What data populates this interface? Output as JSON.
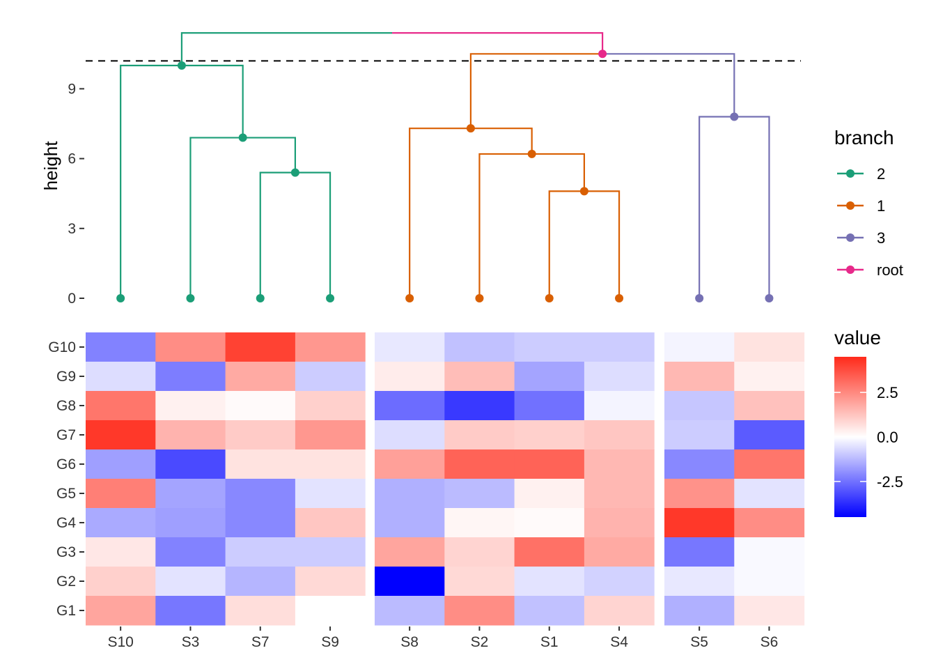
{
  "chart_data": [
    {
      "type": "dendrogram",
      "ylabel": "height",
      "yticks": [
        0,
        3,
        6,
        9
      ],
      "ylim": [
        0,
        12
      ],
      "cut_height": 10.2,
      "leaves": [
        {
          "label": "S10",
          "branch": "2"
        },
        {
          "label": "S3",
          "branch": "2"
        },
        {
          "label": "S7",
          "branch": "2"
        },
        {
          "label": "S9",
          "branch": "2"
        },
        {
          "label": "S8",
          "branch": "1"
        },
        {
          "label": "S2",
          "branch": "1"
        },
        {
          "label": "S1",
          "branch": "1"
        },
        {
          "label": "S4",
          "branch": "1"
        },
        {
          "label": "S5",
          "branch": "3"
        },
        {
          "label": "S6",
          "branch": "3"
        }
      ],
      "merges": [
        {
          "id": "m1",
          "children": [
            "S7",
            "S9"
          ],
          "height": 5.4,
          "branch": "2"
        },
        {
          "id": "m2",
          "children": [
            "S3",
            "m1"
          ],
          "height": 6.9,
          "branch": "2"
        },
        {
          "id": "m3",
          "children": [
            "S10",
            "m2"
          ],
          "height": 10.0,
          "branch": "2"
        },
        {
          "id": "m4",
          "children": [
            "S1",
            "S4"
          ],
          "height": 4.6,
          "branch": "1"
        },
        {
          "id": "m5",
          "children": [
            "S2",
            "m4"
          ],
          "height": 6.2,
          "branch": "1"
        },
        {
          "id": "m6",
          "children": [
            "S8",
            "m5"
          ],
          "height": 7.3,
          "branch": "1"
        },
        {
          "id": "m7",
          "children": [
            "S5",
            "S6"
          ],
          "height": 7.8,
          "branch": "3"
        },
        {
          "id": "m8",
          "children": [
            "m6",
            "m7"
          ],
          "height": 10.5,
          "branch": "root",
          "child_branches": [
            "1",
            "3"
          ]
        },
        {
          "id": "m9",
          "children": [
            "m3",
            "m8"
          ],
          "height": 11.4,
          "branch": "root",
          "child_branches": [
            "2",
            "root"
          ]
        }
      ],
      "legend": {
        "title": "branch",
        "placement": "right",
        "entries": [
          {
            "label": "2",
            "color": "#1b9e77"
          },
          {
            "label": "1",
            "color": "#d95f02"
          },
          {
            "label": "3",
            "color": "#7570b3"
          },
          {
            "label": "root",
            "color": "#e7298a"
          }
        ]
      }
    },
    {
      "type": "heatmap",
      "rows": [
        "G10",
        "G9",
        "G8",
        "G7",
        "G6",
        "G5",
        "G4",
        "G3",
        "G2",
        "G1"
      ],
      "column_groups": [
        [
          "S10",
          "S3",
          "S7",
          "S9"
        ],
        [
          "S8",
          "S2",
          "S1",
          "S4"
        ],
        [
          "S5",
          "S6"
        ]
      ],
      "values": {
        "S10": [
          -2.2,
          -0.6,
          2.9,
          4.2,
          -1.7,
          2.7,
          -1.5,
          0.5,
          1.0,
          1.9
        ],
        "S3": [
          2.4,
          -2.3,
          0.3,
          1.6,
          -3.2,
          -1.6,
          -1.7,
          -2.2,
          -0.5,
          -2.4
        ],
        "S7": [
          4.0,
          1.8,
          0.1,
          1.1,
          0.6,
          -2.1,
          -2.1,
          -0.9,
          -1.3,
          0.7
        ],
        "S9": [
          2.2,
          -0.9,
          1.0,
          2.2,
          0.6,
          -0.5,
          1.2,
          -0.9,
          0.8,
          0.0
        ],
        "S8": [
          -0.4,
          0.4,
          -2.6,
          -0.6,
          2.0,
          -1.4,
          -1.4,
          1.9,
          -4.5,
          -1.2
        ],
        "S2": [
          -1.1,
          1.4,
          -3.5,
          1.1,
          3.3,
          -1.2,
          0.2,
          0.9,
          0.8,
          2.4
        ],
        "S1": [
          -0.9,
          -1.6,
          -2.5,
          1.0,
          3.3,
          0.3,
          0.1,
          3.0,
          -0.5,
          -1.1
        ],
        "S4": [
          -0.9,
          -0.6,
          -0.2,
          1.2,
          1.5,
          1.5,
          1.6,
          1.8,
          -0.8,
          0.9
        ],
        "S5": [
          -0.2,
          1.5,
          -1.0,
          -0.9,
          -2.1,
          2.3,
          4.2,
          -2.4,
          -0.4,
          -1.4
        ],
        "S6": [
          0.6,
          0.3,
          1.3,
          -2.9,
          2.9,
          -0.5,
          2.4,
          -0.1,
          -0.1,
          0.5
        ]
      },
      "colorbar": {
        "title": "value",
        "ticks": [
          2.5,
          0.0,
          -2.5
        ],
        "tick_labels": [
          "2.5",
          "0.0",
          "-2.5"
        ],
        "range": [
          -4.5,
          4.5
        ],
        "low_color": "#0000ff",
        "mid_color": "#ffffff",
        "high_color": "#ff2a1a"
      }
    }
  ]
}
